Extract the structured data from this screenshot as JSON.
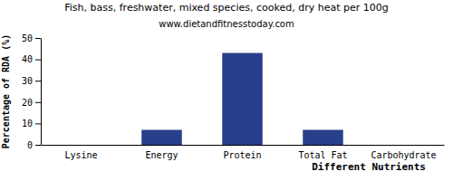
{
  "chart_data": {
    "type": "bar",
    "title": "Fish, bass, freshwater, mixed species, cooked, dry heat per 100g",
    "subtitle": "www.dietandfitnesstoday.com",
    "x_label": "Different Nutrients",
    "y_label": "Percentage of RDA (%)",
    "categories": [
      "Lysine",
      "Energy",
      "Protein",
      "Total Fat",
      "Carbohydrate"
    ],
    "values": [
      0,
      7,
      43,
      7,
      0
    ],
    "color": "#27408b",
    "ylim": [
      0,
      50
    ],
    "yticks": [
      0,
      10,
      20,
      30,
      40,
      50
    ],
    "grid": false
  }
}
